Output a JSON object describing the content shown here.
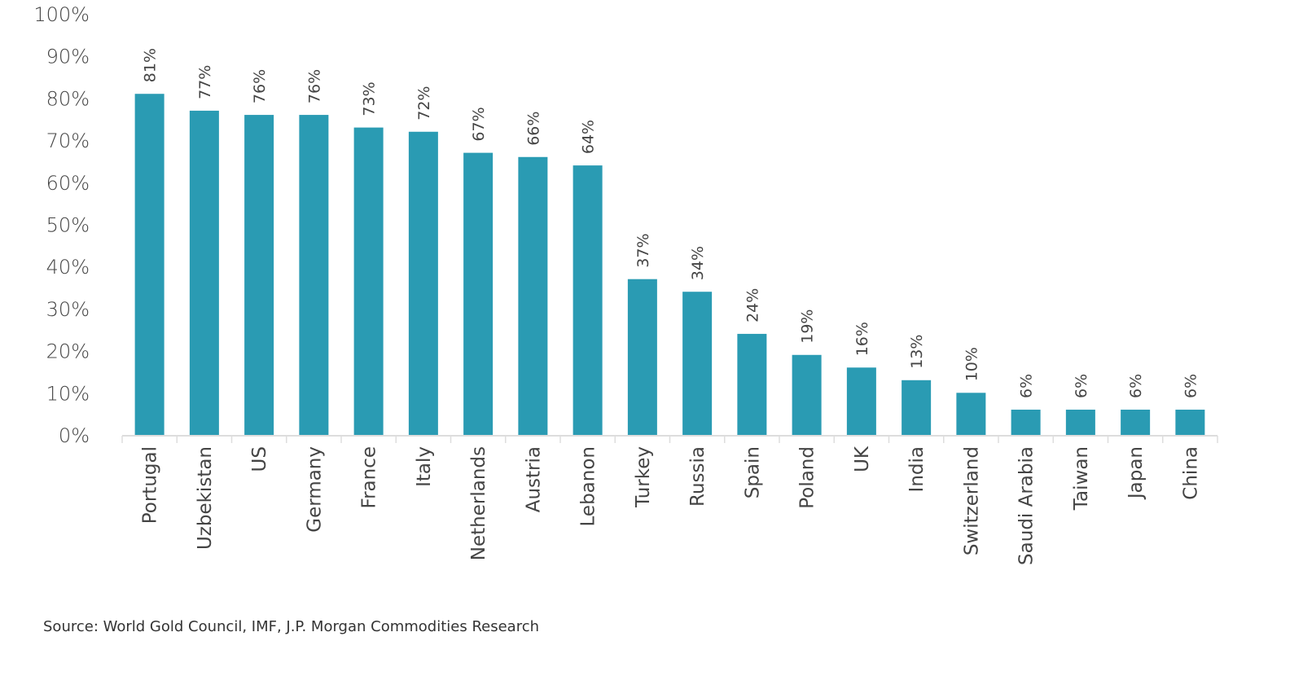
{
  "chart_data": {
    "type": "bar",
    "categories": [
      "Portugal",
      "Uzbekistan",
      "US",
      "Germany",
      "France",
      "Italy",
      "Netherlands",
      "Austria",
      "Lebanon",
      "Turkey",
      "Russia",
      "Spain",
      "Poland",
      "UK",
      "India",
      "Switzerland",
      "Saudi Arabia",
      "Taiwan",
      "Japan",
      "China"
    ],
    "values": [
      81,
      77,
      76,
      76,
      73,
      72,
      67,
      66,
      64,
      37,
      34,
      24,
      19,
      16,
      13,
      10,
      6,
      6,
      6,
      6
    ],
    "data_labels": [
      "81%",
      "77%",
      "76%",
      "76%",
      "73%",
      "72%",
      "67%",
      "66%",
      "64%",
      "37%",
      "34%",
      "24%",
      "19%",
      "16%",
      "13%",
      "10%",
      "6%",
      "6%",
      "6%",
      "6%"
    ],
    "ylim": [
      0,
      100
    ],
    "yticks": [
      0,
      10,
      20,
      30,
      40,
      50,
      60,
      70,
      80,
      90,
      100
    ],
    "ytick_labels": [
      "0%",
      "10%",
      "20%",
      "30%",
      "40%",
      "50%",
      "60%",
      "70%",
      "80%",
      "90%",
      "100%"
    ],
    "grid": false,
    "bar_color": "#2a9bb3",
    "title": "",
    "xlabel": "",
    "ylabel": ""
  },
  "source": "Source: World Gold Council, IMF, J.P. Morgan Commodities Research"
}
